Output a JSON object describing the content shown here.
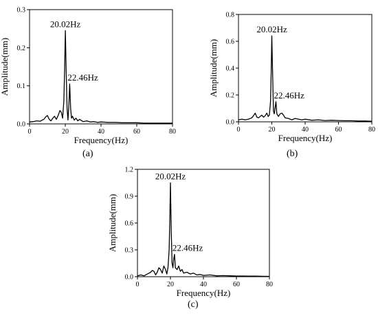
{
  "chart_data": [
    {
      "panel_label": "(a)",
      "type": "line",
      "xlabel": "Frequency(Hz)",
      "ylabel": "Amplitude(mm)",
      "xlim": [
        0,
        80
      ],
      "ylim": [
        0,
        0.3
      ],
      "xticks": [
        0,
        20,
        40,
        60,
        80
      ],
      "yticks": [
        0.0,
        0.1,
        0.2,
        0.3
      ],
      "ytick_labels": [
        "0.0",
        "0.1",
        "0.2",
        "0.3"
      ],
      "annotations": [
        {
          "text": "20.02Hz",
          "x": 20.02,
          "y": 0.245
        },
        {
          "text": "22.46Hz",
          "x": 22.46,
          "y": 0.105
        }
      ],
      "series": [
        {
          "x": [
            0,
            2,
            4,
            6,
            7,
            8,
            9,
            10,
            11,
            12,
            13,
            14,
            15,
            16,
            17,
            17.8,
            18.5,
            19.2,
            19.6,
            20.02,
            20.5,
            21,
            21.5,
            22,
            22.46,
            23,
            23.5,
            24,
            25,
            26,
            27,
            28,
            30,
            32,
            34,
            36,
            38,
            40,
            44,
            48,
            52,
            56,
            60,
            64,
            68,
            72,
            76,
            80
          ],
          "values": [
            0.005,
            0.006,
            0.008,
            0.007,
            0.01,
            0.012,
            0.018,
            0.022,
            0.012,
            0.008,
            0.015,
            0.02,
            0.012,
            0.022,
            0.035,
            0.03,
            0.015,
            0.06,
            0.14,
            0.245,
            0.14,
            0.04,
            0.01,
            0.05,
            0.105,
            0.04,
            0.015,
            0.02,
            0.01,
            0.015,
            0.008,
            0.012,
            0.006,
            0.008,
            0.005,
            0.006,
            0.004,
            0.005,
            0.004,
            0.004,
            0.003,
            0.003,
            0.003,
            0.002,
            0.002,
            0.002,
            0.002,
            0.002
          ]
        }
      ]
    },
    {
      "panel_label": "(b)",
      "type": "line",
      "xlabel": "Frequency(Hz)",
      "ylabel": "Amplitude(mm)",
      "xlim": [
        0,
        80
      ],
      "ylim": [
        0,
        0.8
      ],
      "xticks": [
        0,
        20,
        40,
        60,
        80
      ],
      "yticks": [
        0.0,
        0.2,
        0.4,
        0.6,
        0.8
      ],
      "ytick_labels": [
        "0.0",
        "0.2",
        "0.4",
        "0.6",
        "0.8"
      ],
      "annotations": [
        {
          "text": "20.02Hz",
          "x": 20.02,
          "y": 0.64
        },
        {
          "text": "22.46Hz",
          "x": 22.46,
          "y": 0.15
        }
      ],
      "series": [
        {
          "x": [
            0,
            2,
            4,
            6,
            8,
            9,
            10,
            11,
            12,
            13,
            14,
            15,
            16,
            17,
            17.8,
            18.5,
            19.2,
            19.6,
            20.02,
            20.5,
            21,
            21.5,
            22,
            22.46,
            23,
            24,
            25,
            26,
            27,
            28,
            30,
            32,
            34,
            36,
            38,
            40,
            44,
            48,
            52,
            56,
            60,
            64,
            68,
            72,
            76,
            80
          ],
          "values": [
            0.015,
            0.02,
            0.015,
            0.02,
            0.03,
            0.045,
            0.065,
            0.035,
            0.03,
            0.04,
            0.05,
            0.035,
            0.045,
            0.065,
            0.04,
            0.05,
            0.15,
            0.35,
            0.64,
            0.35,
            0.08,
            0.06,
            0.11,
            0.15,
            0.06,
            0.04,
            0.06,
            0.065,
            0.05,
            0.03,
            0.025,
            0.015,
            0.025,
            0.02,
            0.015,
            0.02,
            0.012,
            0.015,
            0.01,
            0.012,
            0.01,
            0.008,
            0.008,
            0.006,
            0.006,
            0.004
          ]
        }
      ]
    },
    {
      "panel_label": "(c)",
      "type": "line",
      "xlabel": "Frequency(Hz)",
      "ylabel": "Amplitude(mm)",
      "xlim": [
        0,
        80
      ],
      "ylim": [
        0,
        1.2
      ],
      "xticks": [
        0,
        20,
        40,
        60,
        80
      ],
      "yticks": [
        0.0,
        0.3,
        0.6,
        0.9,
        1.2
      ],
      "ytick_labels": [
        "0.0",
        "0.3",
        "0.6",
        "0.9",
        "1.2"
      ],
      "annotations": [
        {
          "text": "20.02Hz",
          "x": 20.02,
          "y": 1.05
        },
        {
          "text": "22.46Hz",
          "x": 22.46,
          "y": 0.25
        }
      ],
      "series": [
        {
          "x": [
            0,
            2,
            4,
            6,
            8,
            9,
            10,
            11,
            12,
            13,
            14,
            15,
            16,
            17,
            17.8,
            18.5,
            19.2,
            19.6,
            20.02,
            20.5,
            21,
            21.5,
            22,
            22.46,
            23,
            24,
            25,
            26,
            27,
            28,
            30,
            32,
            34,
            36,
            38,
            40,
            44,
            48,
            52,
            56,
            60,
            64,
            68,
            72,
            76,
            80
          ],
          "values": [
            0.01,
            0.02,
            0.01,
            0.03,
            0.05,
            0.07,
            0.06,
            0.02,
            0.05,
            0.1,
            0.08,
            0.04,
            0.12,
            0.08,
            0.03,
            0.1,
            0.3,
            0.6,
            1.05,
            0.5,
            0.15,
            0.1,
            0.2,
            0.25,
            0.1,
            0.08,
            0.12,
            0.06,
            0.08,
            0.04,
            0.05,
            0.03,
            0.04,
            0.02,
            0.025,
            0.015,
            0.02,
            0.01,
            0.012,
            0.01,
            0.008,
            0.008,
            0.006,
            0.006,
            0.005,
            0.004
          ]
        }
      ]
    }
  ]
}
